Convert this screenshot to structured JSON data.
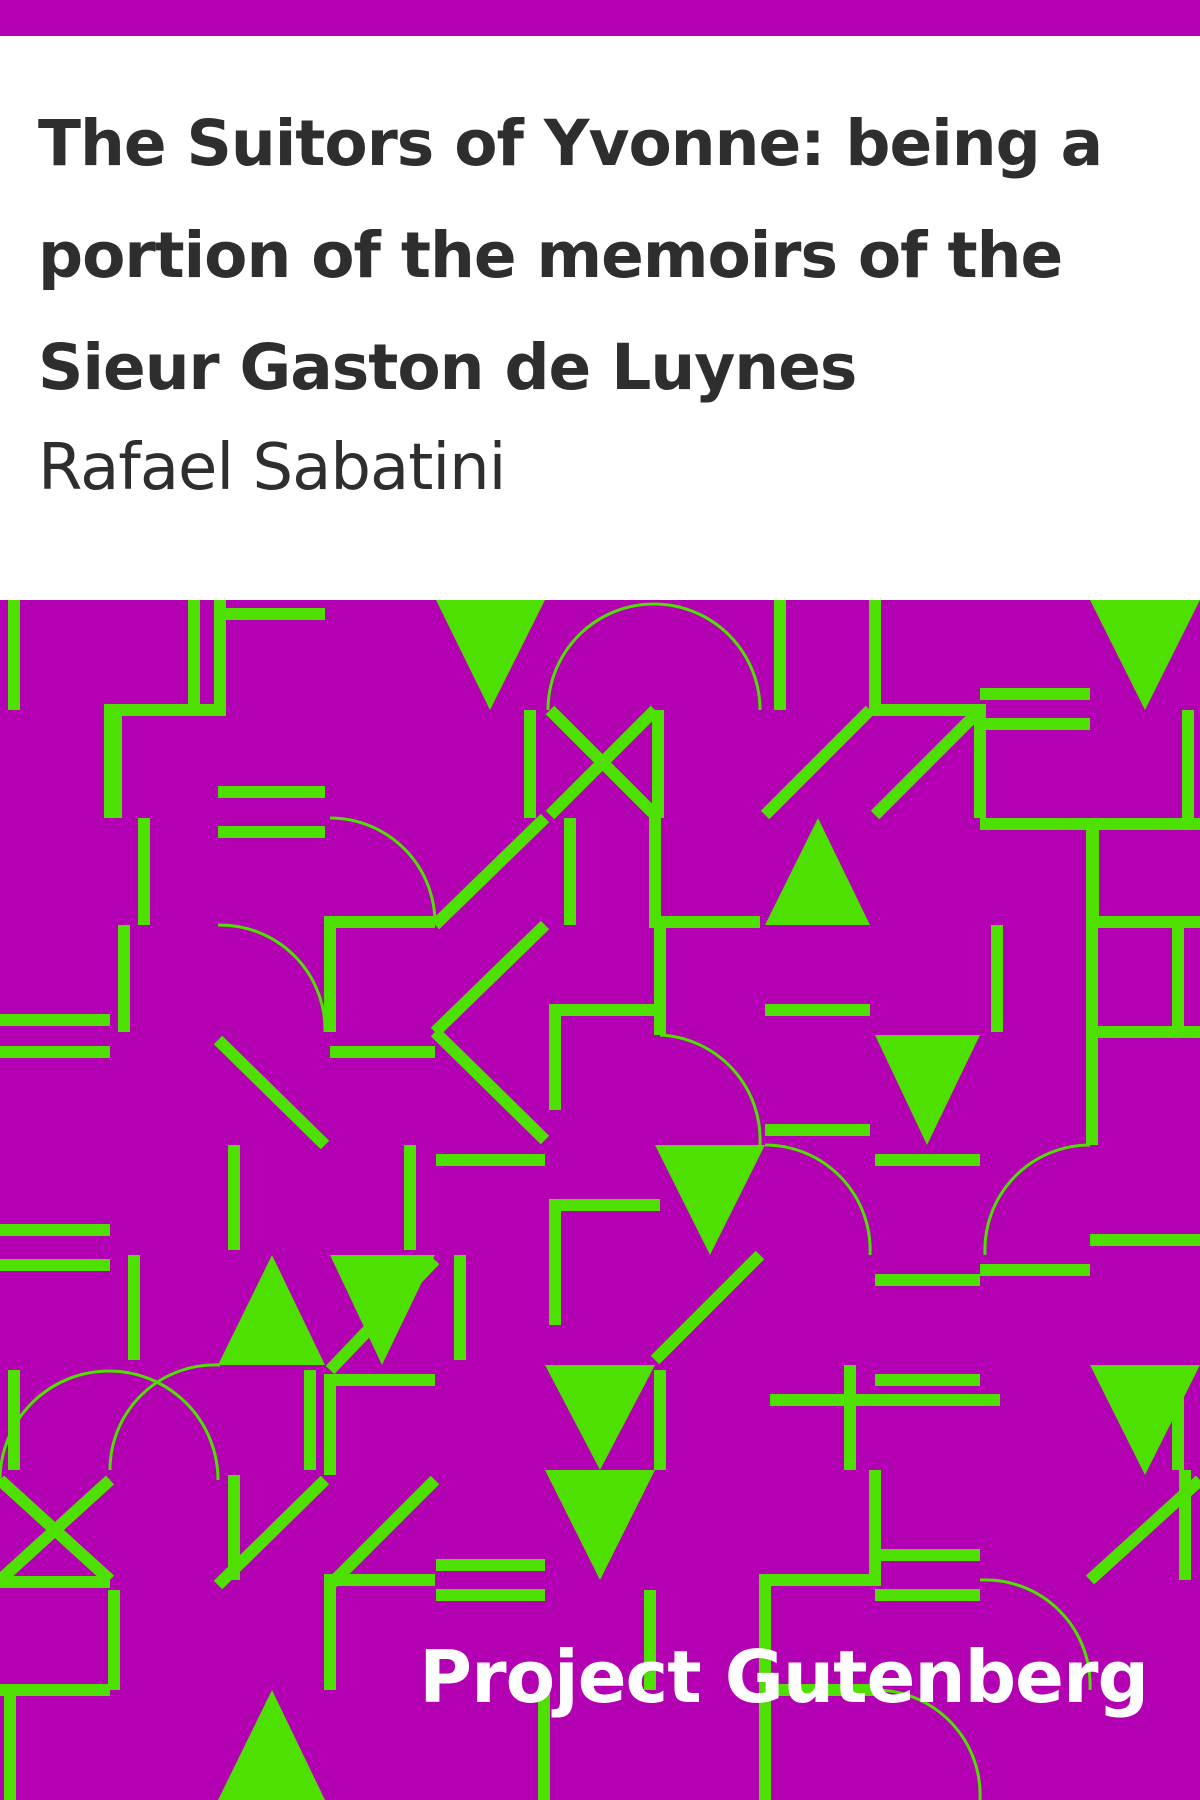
{
  "book": {
    "title": "The Suitors of Yvonne: being a portion of the memoirs of the Sieur Gaston de Luynes",
    "author": "Rafael Sabatini",
    "publisher": "Project Gutenberg"
  },
  "colors": {
    "background": "#b200b2",
    "pattern": "#4ee000",
    "title_text": "#2e2e2e",
    "publisher_text": "#ffffff"
  }
}
